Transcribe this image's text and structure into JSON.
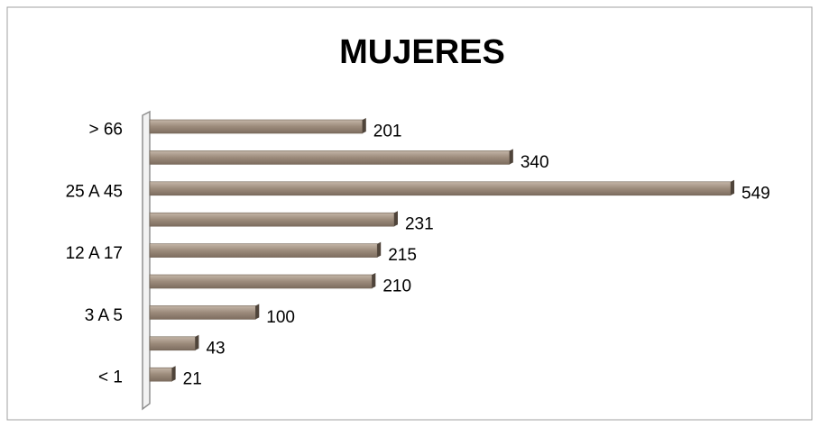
{
  "chart_data": {
    "type": "bar",
    "orientation": "horizontal",
    "title": "MUJERES",
    "categories": [
      "> 66",
      null,
      "25 A 45",
      null,
      "12 A 17",
      null,
      "3 A 5",
      null,
      "< 1"
    ],
    "values": [
      201,
      340,
      549,
      231,
      215,
      210,
      100,
      43,
      21
    ],
    "color": "#9c8b7b"
  }
}
